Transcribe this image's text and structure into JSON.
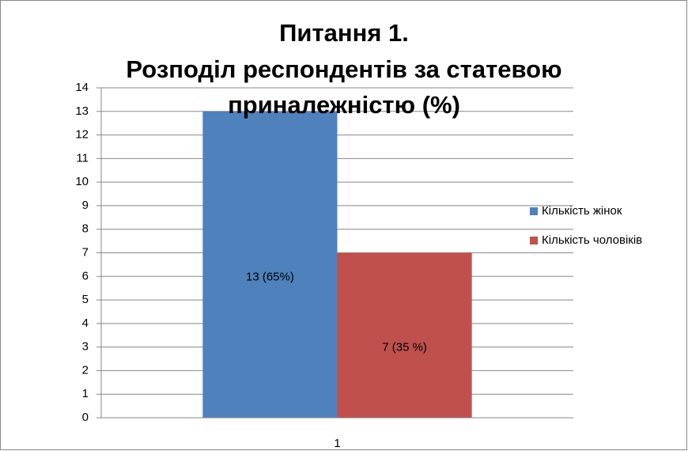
{
  "chart_data": {
    "type": "bar",
    "title": [
      "Питання 1.",
      "Розподіл респондентів за статевою",
      "приналежністю (%)"
    ],
    "categories": [
      "1"
    ],
    "series": [
      {
        "name": "Кількість жінок",
        "color": "#4f81bd",
        "values": [
          13
        ],
        "value_labels": [
          "13 (65%)"
        ]
      },
      {
        "name": "Кількість чоловіків",
        "color": "#c0504d",
        "values": [
          7
        ],
        "value_labels": [
          "7 (35 %)"
        ]
      }
    ],
    "ylim": [
      0,
      14
    ],
    "yticks": [
      0,
      1,
      2,
      3,
      4,
      5,
      6,
      7,
      8,
      9,
      10,
      11,
      12,
      13,
      14
    ],
    "grid": true,
    "legend": "right"
  }
}
